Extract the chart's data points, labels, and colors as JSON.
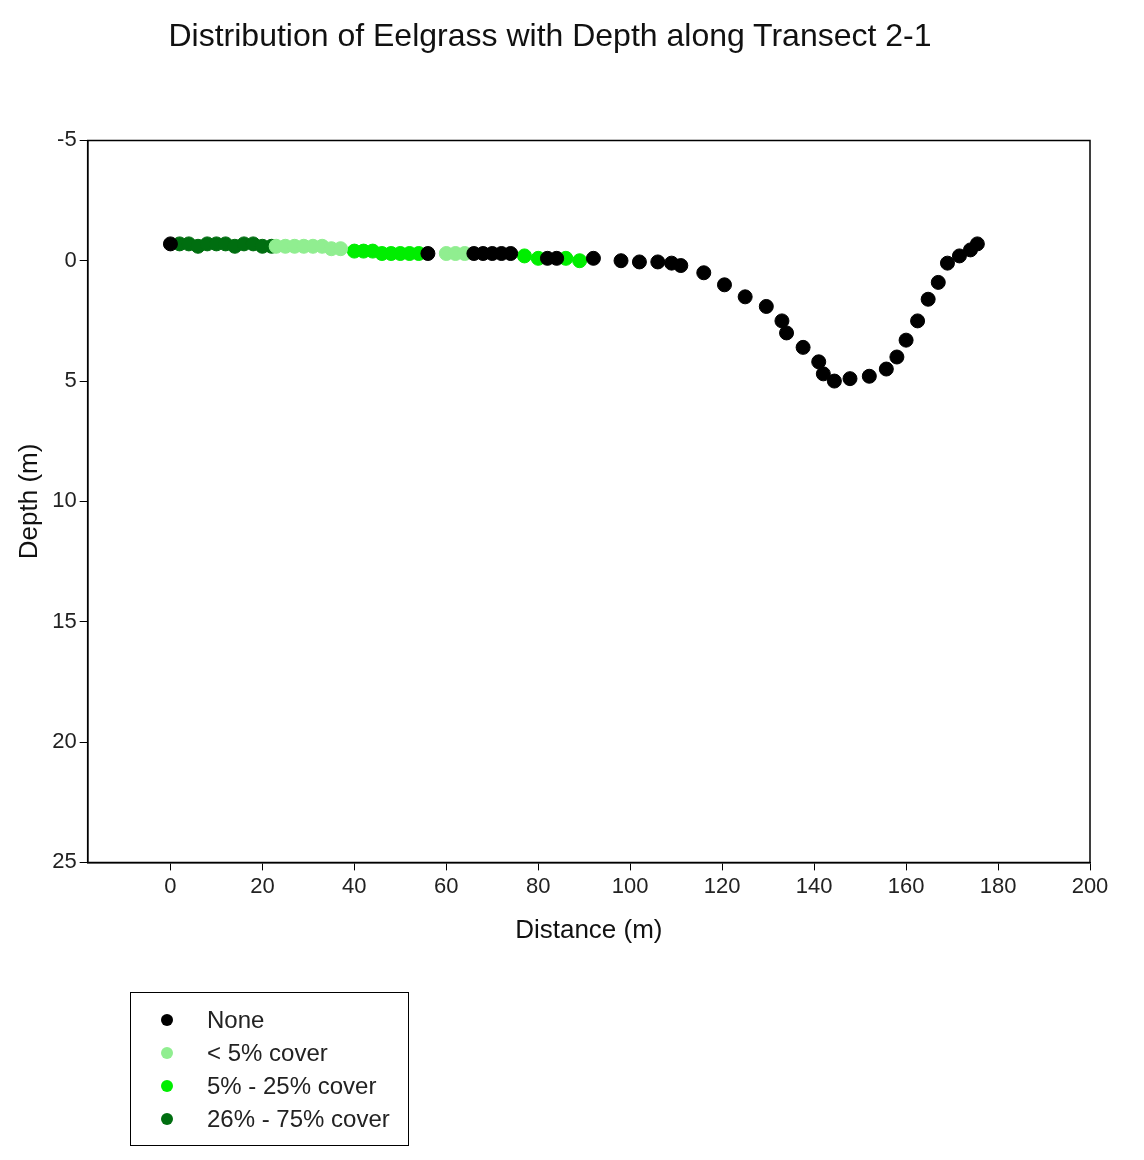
{
  "chart_data": {
    "type": "scatter",
    "title": "Distribution of Eelgrass with Depth along Transect 2-1",
    "xlabel": "Distance (m)",
    "ylabel": "Depth (m)",
    "xlim": [
      -18,
      200
    ],
    "xticks": [
      0,
      20,
      40,
      60,
      80,
      100,
      120,
      140,
      160,
      180,
      200
    ],
    "ylim": [
      25,
      -5
    ],
    "yticks": [
      -5,
      0,
      5,
      10,
      15,
      20,
      25
    ],
    "grid": false,
    "legend": "bottom left",
    "marker": "circle",
    "series": [
      {
        "name": "None",
        "color": "#000000",
        "x": [
          0,
          56,
          66,
          68,
          70,
          72,
          74,
          82,
          84,
          92,
          98,
          102,
          106,
          109,
          111,
          116,
          120.5,
          125,
          129.6,
          133,
          134,
          137.6,
          141,
          142,
          144.4,
          147.8,
          152,
          155.7,
          158,
          160,
          162.5,
          164.8,
          167,
          169,
          171.6,
          174,
          175.5
        ],
        "values": [
          -0.7,
          -0.3,
          -0.3,
          -0.3,
          -0.3,
          -0.3,
          -0.3,
          -0.1,
          -0.1,
          -0.1,
          0,
          0.05,
          0.05,
          0.1,
          0.2,
          0.5,
          1.0,
          1.5,
          1.9,
          2.5,
          3.0,
          3.6,
          4.2,
          4.7,
          5.0,
          4.9,
          4.8,
          4.5,
          4.0,
          3.3,
          2.5,
          1.6,
          0.9,
          0.1,
          -0.2,
          -0.45,
          -0.7
        ]
      },
      {
        "name": "< 5% cover",
        "color": "#90ee90",
        "x": [
          23,
          25,
          27,
          29,
          31,
          33,
          35,
          37,
          60,
          62,
          64
        ],
        "values": [
          -0.6,
          -0.6,
          -0.6,
          -0.6,
          -0.6,
          -0.6,
          -0.5,
          -0.5,
          -0.3,
          -0.3,
          -0.3
        ]
      },
      {
        "name": "5% - 25% cover",
        "color": "#00ee00",
        "x": [
          40,
          42,
          44,
          46,
          48,
          50,
          52,
          54,
          77,
          80,
          86,
          89
        ],
        "values": [
          -0.4,
          -0.4,
          -0.4,
          -0.3,
          -0.3,
          -0.3,
          -0.3,
          -0.3,
          -0.2,
          -0.1,
          -0.1,
          0
        ]
      },
      {
        "name": "26% - 75% cover",
        "color": "#006e10",
        "x": [
          2,
          4,
          6,
          8,
          10,
          12,
          14,
          16,
          18,
          20,
          22
        ],
        "values": [
          -0.7,
          -0.7,
          -0.6,
          -0.7,
          -0.7,
          -0.7,
          -0.6,
          -0.7,
          -0.7,
          -0.6,
          -0.6
        ]
      }
    ]
  }
}
